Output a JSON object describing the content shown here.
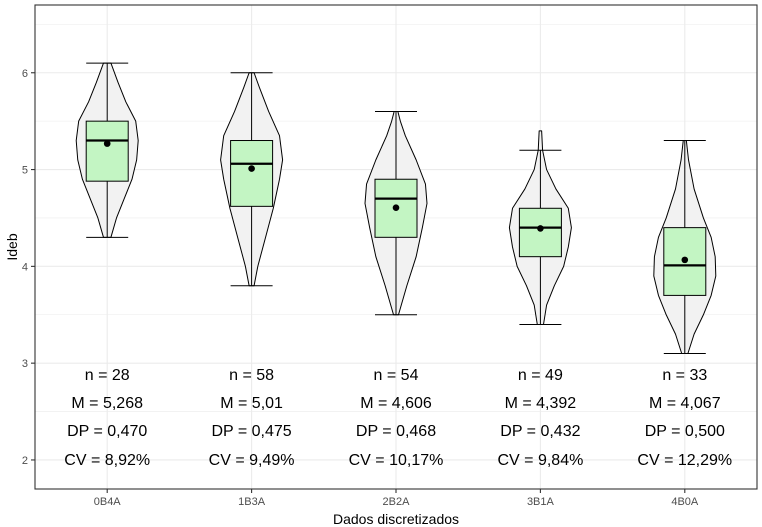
{
  "chart_data": {
    "type": "violin-box",
    "xlabel": "Dados discretizados",
    "ylabel": "Ideb",
    "ylim": [
      1.7,
      6.7
    ],
    "yticks": [
      2,
      3,
      4,
      5,
      6
    ],
    "grid": true,
    "colors": {
      "box_fill": "#c3f5c3",
      "violin_fill": "#f2f2f2",
      "line": "#000000"
    },
    "categories": [
      "0B4A",
      "1B3A",
      "2B2A",
      "3B1A",
      "4B0A"
    ],
    "groups": [
      {
        "category": "0B4A",
        "min": 4.3,
        "q1": 4.88,
        "median": 5.3,
        "q3": 5.5,
        "max": 6.1,
        "mean": 5.268,
        "density": [
          [
            4.3,
            0.12
          ],
          [
            4.5,
            0.3
          ],
          [
            4.7,
            0.55
          ],
          [
            4.9,
            0.8
          ],
          [
            5.1,
            0.95
          ],
          [
            5.3,
            1.0
          ],
          [
            5.5,
            0.92
          ],
          [
            5.7,
            0.6
          ],
          [
            5.9,
            0.35
          ],
          [
            6.1,
            0.12
          ]
        ]
      },
      {
        "category": "1B3A",
        "min": 3.8,
        "q1": 4.62,
        "median": 5.06,
        "q3": 5.3,
        "max": 6.0,
        "mean": 5.01,
        "density": [
          [
            3.8,
            0.08
          ],
          [
            4.0,
            0.2
          ],
          [
            4.3,
            0.45
          ],
          [
            4.6,
            0.7
          ],
          [
            4.9,
            0.9
          ],
          [
            5.1,
            1.0
          ],
          [
            5.35,
            0.9
          ],
          [
            5.6,
            0.55
          ],
          [
            5.85,
            0.25
          ],
          [
            6.0,
            0.08
          ]
        ]
      },
      {
        "category": "2B2A",
        "min": 3.5,
        "q1": 4.3,
        "median": 4.7,
        "q3": 4.9,
        "max": 5.6,
        "mean": 4.606,
        "density": [
          [
            3.5,
            0.08
          ],
          [
            3.8,
            0.35
          ],
          [
            4.1,
            0.65
          ],
          [
            4.4,
            0.85
          ],
          [
            4.65,
            1.0
          ],
          [
            4.85,
            0.95
          ],
          [
            5.1,
            0.65
          ],
          [
            5.35,
            0.3
          ],
          [
            5.5,
            0.14
          ],
          [
            5.6,
            0.06
          ]
        ]
      },
      {
        "category": "3B1A",
        "min": 3.4,
        "q1": 4.1,
        "median": 4.4,
        "q3": 4.6,
        "max": 5.2,
        "mean": 4.392,
        "density": [
          [
            3.4,
            0.1
          ],
          [
            3.6,
            0.2
          ],
          [
            3.8,
            0.45
          ],
          [
            4.0,
            0.75
          ],
          [
            4.2,
            0.9
          ],
          [
            4.4,
            1.0
          ],
          [
            4.6,
            0.9
          ],
          [
            4.8,
            0.5
          ],
          [
            5.0,
            0.2
          ],
          [
            5.2,
            0.07
          ],
          [
            5.4,
            0.04
          ]
        ]
      },
      {
        "category": "4B0A",
        "min": 3.1,
        "q1": 3.7,
        "median": 4.01,
        "q3": 4.4,
        "max": 5.3,
        "mean": 4.067,
        "density": [
          [
            3.1,
            0.1
          ],
          [
            3.3,
            0.3
          ],
          [
            3.5,
            0.6
          ],
          [
            3.7,
            0.85
          ],
          [
            3.9,
            1.0
          ],
          [
            4.1,
            0.98
          ],
          [
            4.3,
            0.85
          ],
          [
            4.5,
            0.6
          ],
          [
            4.8,
            0.3
          ],
          [
            5.1,
            0.12
          ],
          [
            5.3,
            0.05
          ]
        ]
      }
    ],
    "annotations": [
      {
        "category": "0B4A",
        "n": "n = 28",
        "m": "M = 5,268",
        "dp": "DP = 0,470",
        "cv": "CV = 8,92%"
      },
      {
        "category": "1B3A",
        "n": "n = 58",
        "m": "M = 5,01",
        "dp": "DP = 0,475",
        "cv": "CV = 9,49%"
      },
      {
        "category": "2B2A",
        "n": "n = 54",
        "m": "M = 4,606",
        "dp": "DP = 0,468",
        "cv": "CV = 10,17%"
      },
      {
        "category": "3B1A",
        "n": "n = 49",
        "m": "M = 4,392",
        "dp": "DP = 0,432",
        "cv": "CV = 9,84%"
      },
      {
        "category": "4B0A",
        "n": "n = 33",
        "m": "M = 4,067",
        "dp": "DP = 0,500",
        "cv": "CV = 12,29%"
      }
    ]
  }
}
